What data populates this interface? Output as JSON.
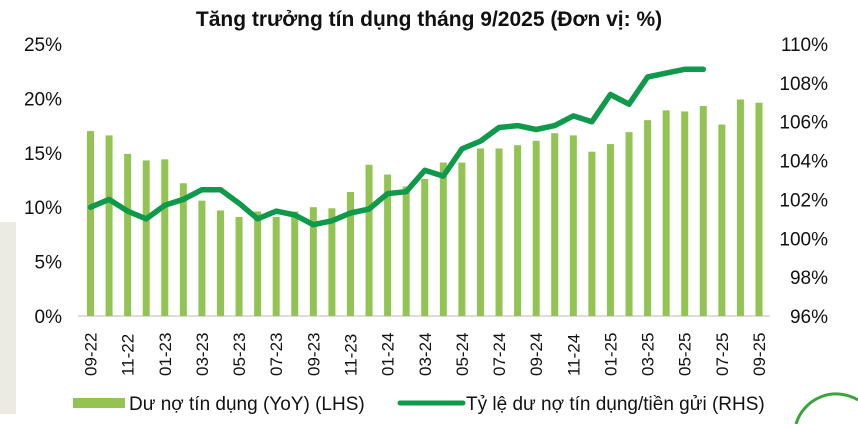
{
  "chart_data": {
    "type": "bar+line",
    "title": "Tăng trưởng tín dụng tháng 9/2025 (Đơn vị: %)",
    "categories": [
      "09-22",
      "10-22",
      "11-22",
      "12-22",
      "01-23",
      "02-23",
      "03-23",
      "04-23",
      "05-23",
      "06-23",
      "07-23",
      "08-23",
      "09-23",
      "10-23",
      "11-23",
      "12-23",
      "01-24",
      "02-24",
      "03-24",
      "04-24",
      "05-24",
      "06-24",
      "07-24",
      "08-24",
      "09-24",
      "10-24",
      "11-24",
      "12-24",
      "01-25",
      "02-25",
      "03-25",
      "04-25",
      "05-25",
      "06-25",
      "07-25",
      "08-25",
      "09-25"
    ],
    "x_tick_labels": [
      "09-22",
      "11-22",
      "01-23",
      "03-23",
      "05-23",
      "07-23",
      "09-23",
      "11-23",
      "01-24",
      "03-24",
      "05-24",
      "07-24",
      "09-24",
      "11-24",
      "01-25",
      "03-25",
      "05-25",
      "07-25",
      "09-25"
    ],
    "series": [
      {
        "name": "Dư nợ tín dụng (YoY) (LHS)",
        "type": "bar",
        "axis": "left",
        "color": "#92c353",
        "values": [
          17.0,
          16.6,
          14.9,
          14.3,
          14.4,
          12.2,
          10.6,
          9.7,
          9.1,
          9.6,
          9.1,
          9.6,
          10.0,
          9.9,
          11.4,
          13.9,
          13.0,
          11.9,
          12.6,
          14.1,
          14.1,
          15.4,
          15.4,
          15.7,
          16.1,
          16.8,
          16.6,
          15.1,
          15.8,
          16.9,
          18.0,
          18.9,
          18.8,
          19.3,
          17.6,
          19.9,
          19.6
        ]
      },
      {
        "name": "Tỷ lệ dư nợ tín dụng/tiền gửi (RHS)",
        "type": "line",
        "axis": "right",
        "color": "#0e9a4a",
        "values": [
          101.6,
          102.0,
          101.4,
          101.0,
          101.7,
          102.0,
          102.5,
          102.5,
          101.8,
          101.0,
          101.4,
          101.2,
          100.7,
          100.9,
          101.3,
          101.5,
          102.3,
          102.4,
          103.5,
          103.2,
          104.6,
          105.0,
          105.7,
          105.8,
          105.6,
          105.8,
          106.3,
          106.0,
          107.4,
          106.9,
          108.3,
          108.5,
          108.7,
          108.7,
          null,
          null,
          null
        ]
      }
    ],
    "left_axis": {
      "ylim": [
        0,
        25
      ],
      "ticks": [
        "0%",
        "5%",
        "10%",
        "15%",
        "20%",
        "25%"
      ]
    },
    "right_axis": {
      "ylim": [
        96,
        110
      ],
      "ticks": [
        "96%",
        "98%",
        "100%",
        "102%",
        "104%",
        "106%",
        "108%",
        "110%"
      ]
    },
    "grid": false,
    "legend_position": "bottom"
  },
  "legend": {
    "bar_label": "Dư nợ tín dụng (YoY) (LHS)",
    "line_label": "Tỷ lệ dư nợ tín dụng/tiền gửi (RHS)"
  }
}
